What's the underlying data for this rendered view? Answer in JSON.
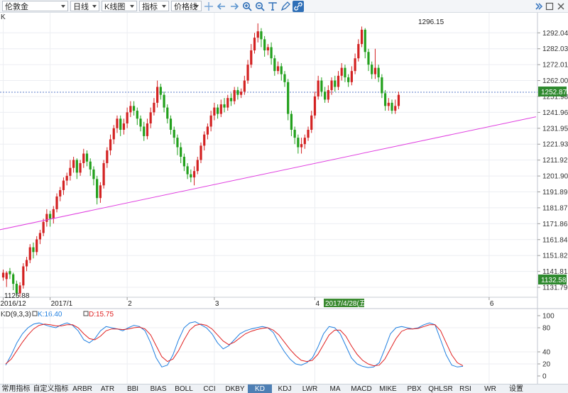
{
  "toolbar": {
    "symbol": "伦敦金",
    "period": "日线",
    "chart_type": "K线图",
    "indicator": "指标",
    "price_line": "价格线"
  },
  "main": {
    "label": "K",
    "current_price": "1252.87",
    "bottom_price": "1132.58",
    "high_label": "1296.15",
    "low_label": "1125.88",
    "cursor_date": "2017/4/28(五)",
    "y_ticks": [
      "1292.04",
      "1282.03",
      "1272.01",
      "1262.00",
      "1251.98",
      "1241.96",
      "1231.95",
      "1221.93",
      "1211.92",
      "1201.90",
      "1191.89",
      "1181.87",
      "1171.86",
      "1161.84",
      "1151.82",
      "1141.81",
      "1131.79"
    ],
    "x_ticks": [
      "2016/12",
      "2017/1",
      "2",
      "3",
      "4",
      "6"
    ]
  },
  "indicator": {
    "title": "KD(9,3,3)",
    "k_label": "K:16.40",
    "d_label": "D:15.75",
    "y_ticks": [
      "100",
      "80",
      "40",
      "20",
      "0"
    ],
    "k_color": "#1f7fe0",
    "d_color": "#e02020"
  },
  "tabs": [
    "常用指标",
    "自定义指标",
    "ARBR",
    "ATR",
    "BBI",
    "BIAS",
    "BOLL",
    "CCI",
    "DKBY",
    "KD",
    "KDJ",
    "LWR",
    "MA",
    "MACD",
    "MIKE",
    "PBX",
    "QHLSR",
    "RSI",
    "WR",
    "设置"
  ],
  "active_tab": "KD",
  "colors": {
    "up": "#d32222",
    "down": "#22a01c",
    "trendline": "#e040e0",
    "price_tag": "#2f8a2f"
  },
  "chart_data": {
    "type": "candlestick",
    "y_range": [
      1126,
      1302
    ],
    "candles": [
      [
        1138,
        1141,
        1136,
        1143
      ],
      [
        1137,
        1141,
        1132,
        1142
      ],
      [
        1142,
        1140,
        1137,
        1144
      ],
      [
        1140,
        1134,
        1130,
        1141
      ],
      [
        1134,
        1128,
        1126,
        1136
      ],
      [
        1128,
        1133,
        1126,
        1135
      ],
      [
        1133,
        1145,
        1131,
        1147
      ],
      [
        1145,
        1149,
        1142,
        1151
      ],
      [
        1149,
        1157,
        1147,
        1159
      ],
      [
        1157,
        1154,
        1150,
        1160
      ],
      [
        1154,
        1162,
        1152,
        1164
      ],
      [
        1162,
        1166,
        1159,
        1168
      ],
      [
        1166,
        1173,
        1164,
        1175
      ],
      [
        1173,
        1178,
        1170,
        1181
      ],
      [
        1178,
        1175,
        1170,
        1180
      ],
      [
        1175,
        1181,
        1172,
        1183
      ],
      [
        1181,
        1189,
        1179,
        1191
      ],
      [
        1189,
        1193,
        1186,
        1195
      ],
      [
        1193,
        1199,
        1190,
        1201
      ],
      [
        1199,
        1202,
        1196,
        1204
      ],
      [
        1202,
        1207,
        1199,
        1212
      ],
      [
        1207,
        1212,
        1204,
        1214
      ],
      [
        1212,
        1204,
        1200,
        1213
      ],
      [
        1204,
        1210,
        1202,
        1212
      ],
      [
        1210,
        1216,
        1207,
        1219
      ],
      [
        1216,
        1211,
        1208,
        1218
      ],
      [
        1211,
        1206,
        1202,
        1213
      ],
      [
        1206,
        1200,
        1196,
        1208
      ],
      [
        1200,
        1188,
        1184,
        1202
      ],
      [
        1188,
        1196,
        1185,
        1198
      ],
      [
        1196,
        1210,
        1194,
        1212
      ],
      [
        1210,
        1218,
        1207,
        1220
      ],
      [
        1218,
        1225,
        1215,
        1228
      ],
      [
        1225,
        1232,
        1222,
        1234
      ],
      [
        1232,
        1238,
        1229,
        1240
      ],
      [
        1238,
        1231,
        1227,
        1240
      ],
      [
        1231,
        1235,
        1228,
        1238
      ],
      [
        1235,
        1242,
        1232,
        1245
      ],
      [
        1242,
        1246,
        1239,
        1249
      ],
      [
        1246,
        1243,
        1240,
        1249
      ],
      [
        1243,
        1238,
        1234,
        1245
      ],
      [
        1238,
        1233,
        1230,
        1240
      ],
      [
        1233,
        1227,
        1224,
        1236
      ],
      [
        1227,
        1235,
        1225,
        1238
      ],
      [
        1235,
        1242,
        1232,
        1245
      ],
      [
        1242,
        1248,
        1240,
        1251
      ],
      [
        1248,
        1258,
        1245,
        1262
      ],
      [
        1258,
        1253,
        1250,
        1260
      ],
      [
        1253,
        1245,
        1242,
        1255
      ],
      [
        1245,
        1238,
        1235,
        1247
      ],
      [
        1238,
        1231,
        1228,
        1240
      ],
      [
        1231,
        1226,
        1222,
        1233
      ],
      [
        1226,
        1220,
        1215,
        1228
      ],
      [
        1220,
        1214,
        1210,
        1223
      ],
      [
        1214,
        1208,
        1205,
        1216
      ],
      [
        1208,
        1203,
        1200,
        1210
      ],
      [
        1203,
        1201,
        1198,
        1206
      ],
      [
        1201,
        1205,
        1196,
        1208
      ],
      [
        1205,
        1212,
        1203,
        1214
      ],
      [
        1212,
        1221,
        1210,
        1223
      ],
      [
        1221,
        1228,
        1218,
        1230
      ],
      [
        1228,
        1233,
        1225,
        1235
      ],
      [
        1233,
        1240,
        1230,
        1243
      ],
      [
        1240,
        1245,
        1237,
        1248
      ],
      [
        1245,
        1241,
        1238,
        1247
      ],
      [
        1241,
        1247,
        1239,
        1250
      ],
      [
        1247,
        1245,
        1242,
        1251
      ],
      [
        1245,
        1251,
        1243,
        1253
      ],
      [
        1251,
        1249,
        1246,
        1254
      ],
      [
        1249,
        1256,
        1247,
        1258
      ],
      [
        1256,
        1253,
        1250,
        1258
      ],
      [
        1253,
        1255,
        1251,
        1257
      ],
      [
        1255,
        1262,
        1253,
        1265
      ],
      [
        1262,
        1272,
        1260,
        1275
      ],
      [
        1272,
        1281,
        1270,
        1285
      ],
      [
        1281,
        1289,
        1279,
        1292
      ],
      [
        1289,
        1293,
        1286,
        1298
      ],
      [
        1293,
        1288,
        1283,
        1295
      ],
      [
        1288,
        1281,
        1277,
        1290
      ],
      [
        1281,
        1283,
        1278,
        1285
      ],
      [
        1283,
        1276,
        1272,
        1286
      ],
      [
        1276,
        1268,
        1265,
        1278
      ],
      [
        1268,
        1271,
        1266,
        1274
      ],
      [
        1271,
        1266,
        1262,
        1273
      ],
      [
        1266,
        1261,
        1258,
        1268
      ],
      [
        1261,
        1241,
        1237,
        1263
      ],
      [
        1241,
        1231,
        1227,
        1243
      ],
      [
        1231,
        1226,
        1222,
        1233
      ],
      [
        1226,
        1220,
        1216,
        1228
      ],
      [
        1220,
        1222,
        1216,
        1226
      ],
      [
        1222,
        1226,
        1219,
        1228
      ],
      [
        1226,
        1231,
        1224,
        1233
      ],
      [
        1231,
        1240,
        1229,
        1243
      ],
      [
        1240,
        1252,
        1238,
        1255
      ],
      [
        1252,
        1262,
        1250,
        1265
      ],
      [
        1262,
        1255,
        1252,
        1264
      ],
      [
        1255,
        1250,
        1248,
        1258
      ],
      [
        1250,
        1256,
        1248,
        1259
      ],
      [
        1256,
        1262,
        1253,
        1264
      ],
      [
        1262,
        1258,
        1255,
        1265
      ],
      [
        1258,
        1265,
        1256,
        1268
      ],
      [
        1265,
        1270,
        1262,
        1273
      ],
      [
        1270,
        1264,
        1261,
        1272
      ],
      [
        1264,
        1261,
        1258,
        1266
      ],
      [
        1261,
        1268,
        1259,
        1271
      ],
      [
        1268,
        1276,
        1266,
        1279
      ],
      [
        1276,
        1285,
        1274,
        1288
      ],
      [
        1285,
        1294,
        1283,
        1296
      ],
      [
        1294,
        1280,
        1276,
        1295
      ],
      [
        1280,
        1272,
        1268,
        1282
      ],
      [
        1272,
        1266,
        1263,
        1274
      ],
      [
        1266,
        1270,
        1263,
        1282
      ],
      [
        1270,
        1264,
        1261,
        1272
      ],
      [
        1264,
        1254,
        1251,
        1266
      ],
      [
        1254,
        1246,
        1243,
        1256
      ],
      [
        1246,
        1248,
        1243,
        1251
      ],
      [
        1248,
        1243,
        1241,
        1250
      ],
      [
        1243,
        1246,
        1241,
        1250
      ],
      [
        1246,
        1253,
        1244,
        1255
      ]
    ],
    "trendline": [
      [
        0,
        1168.5
      ],
      [
        159,
        1239.2
      ]
    ],
    "x_labels": [
      [
        "2016/12",
        0
      ],
      [
        "2017/1",
        14
      ],
      [
        "2",
        37
      ],
      [
        "3",
        63
      ],
      [
        "4",
        93
      ],
      [
        "6",
        145
      ]
    ],
    "kd": {
      "y_range": [
        0,
        100
      ],
      "k": [
        18,
        35,
        55,
        70,
        80,
        86,
        88,
        85,
        82,
        80,
        85,
        88,
        84,
        75,
        60,
        55,
        62,
        75,
        82,
        80,
        78,
        75,
        80,
        84,
        82,
        75,
        55,
        30,
        15,
        18,
        35,
        60,
        80,
        88,
        90,
        85,
        80,
        70,
        55,
        45,
        50,
        60,
        70,
        75,
        78,
        80,
        82,
        80,
        72,
        55,
        40,
        28,
        20,
        18,
        22,
        30,
        48,
        70,
        82,
        80,
        70,
        50,
        30,
        20,
        16,
        14,
        15,
        22,
        45,
        70,
        80,
        82,
        80,
        78,
        80,
        85,
        88,
        85,
        60,
        35,
        18,
        15,
        16
      ],
      "d": [
        20,
        28,
        42,
        56,
        68,
        78,
        84,
        86,
        85,
        83,
        83,
        85,
        85,
        80,
        70,
        62,
        60,
        66,
        75,
        78,
        78,
        77,
        78,
        80,
        81,
        78,
        68,
        50,
        32,
        24,
        28,
        42,
        60,
        76,
        84,
        86,
        84,
        78,
        68,
        58,
        52,
        56,
        63,
        70,
        74,
        77,
        79,
        80,
        76,
        68,
        56,
        44,
        34,
        26,
        24,
        26,
        36,
        52,
        68,
        76,
        76,
        66,
        50,
        36,
        26,
        20,
        17,
        18,
        28,
        45,
        62,
        74,
        78,
        78,
        79,
        82,
        85,
        85,
        75,
        55,
        35,
        22,
        17
      ]
    }
  }
}
